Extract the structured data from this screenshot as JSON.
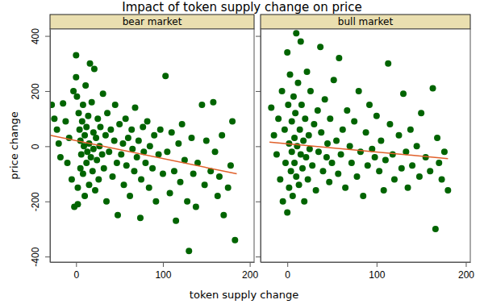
{
  "chart_data": [
    {
      "type": "scatter",
      "title": "Impact of token supply change on price",
      "subtitle": "bear market",
      "x_label": "token supply change",
      "y_label": "price change",
      "xlim": [
        -30,
        205
      ],
      "ylim": [
        -420,
        425
      ],
      "xticks": [
        0,
        100,
        200
      ],
      "yticks": [
        -400,
        -200,
        0,
        200,
        400
      ],
      "series": [
        {
          "type": "scatter",
          "color": "#006400",
          "marker": "circle",
          "x": [
            -28,
            -25,
            -22,
            -20,
            -18,
            -15,
            -12,
            -10,
            -8,
            -5,
            -3,
            -2,
            0,
            0,
            1,
            2,
            2,
            3,
            4,
            5,
            5,
            6,
            7,
            8,
            8,
            9,
            10,
            10,
            11,
            12,
            12,
            13,
            14,
            15,
            15,
            16,
            17,
            18,
            19,
            20,
            20,
            21,
            22,
            23,
            24,
            25,
            26,
            27,
            28,
            30,
            31,
            32,
            34,
            35,
            36,
            38,
            40,
            42,
            44,
            45,
            47,
            48,
            50,
            52,
            54,
            55,
            57,
            58,
            60,
            62,
            64,
            65,
            67,
            68,
            70,
            72,
            74,
            75,
            77,
            78,
            80,
            82,
            84,
            85,
            88,
            90,
            92,
            95,
            97,
            100,
            103,
            105,
            108,
            110,
            113,
            115,
            118,
            120,
            122,
            125,
            128,
            130,
            133,
            135,
            138,
            140,
            145,
            148,
            150,
            155,
            158,
            160,
            163,
            165,
            168,
            170,
            175,
            178,
            180,
            183
          ],
          "values": [
            150,
            100,
            60,
            10,
            -40,
            155,
            90,
            -60,
            30,
            -120,
            200,
            -220,
            330,
            250,
            180,
            -210,
            -150,
            120,
            60,
            -80,
            20,
            -30,
            90,
            -100,
            150,
            0,
            -180,
            40,
            220,
            -60,
            70,
            -20,
            110,
            -140,
            10,
            300,
            -40,
            160,
            -90,
            50,
            -10,
            280,
            -160,
            30,
            -50,
            100,
            -120,
            0,
            70,
            -30,
            190,
            -80,
            40,
            -200,
            120,
            -20,
            60,
            -110,
            20,
            150,
            -60,
            -250,
            80,
            -30,
            10,
            -140,
            100,
            -70,
            30,
            -180,
            60,
            -10,
            -90,
            140,
            -40,
            20,
            -260,
            -120,
            70,
            -20,
            -60,
            90,
            -150,
            0,
            -80,
            40,
            -200,
            -30,
            60,
            -100,
            255,
            -20,
            -170,
            50,
            -90,
            -270,
            10,
            -130,
            80,
            -50,
            -200,
            -380,
            30,
            -100,
            -220,
            -60,
            150,
            -140,
            20,
            -90,
            160,
            -20,
            -180,
            -110,
            40,
            -250,
            -150,
            -70,
            90,
            -340
          ]
        },
        {
          "type": "line",
          "color": "#e0602a",
          "line_style": "solid",
          "x": [
            -30,
            185
          ],
          "values": [
            40,
            -100
          ]
        }
      ]
    },
    {
      "type": "scatter",
      "subtitle": "bull market",
      "xlim": [
        -30,
        205
      ],
      "ylim": [
        -420,
        425
      ],
      "xticks": [
        0,
        100,
        200
      ],
      "yticks": [
        -400,
        -200,
        0,
        200,
        400
      ],
      "tick_labels": "x",
      "series": [
        {
          "type": "scatter",
          "color": "#006400",
          "marker": "circle",
          "x": [
            -18,
            -15,
            -12,
            -10,
            -8,
            -6,
            -5,
            -3,
            -2,
            0,
            0,
            1,
            2,
            2,
            3,
            4,
            5,
            5,
            6,
            7,
            8,
            8,
            9,
            10,
            10,
            11,
            12,
            13,
            14,
            15,
            15,
            16,
            17,
            18,
            19,
            20,
            21,
            22,
            23,
            24,
            25,
            26,
            28,
            30,
            32,
            34,
            35,
            37,
            38,
            40,
            42,
            44,
            45,
            47,
            48,
            50,
            52,
            55,
            57,
            58,
            60,
            62,
            65,
            67,
            70,
            72,
            75,
            78,
            80,
            82,
            85,
            88,
            90,
            92,
            95,
            98,
            100,
            103,
            105,
            108,
            110,
            113,
            115,
            118,
            120,
            125,
            128,
            130,
            133,
            135,
            138,
            140,
            145,
            148,
            150,
            155,
            160,
            163,
            166,
            168,
            170,
            173,
            176,
            180
          ],
          "values": [
            140,
            40,
            -30,
            100,
            -120,
            200,
            -200,
            60,
            -60,
            340,
            -240,
            150,
            10,
            -150,
            260,
            -90,
            90,
            -20,
            -180,
            180,
            30,
            -60,
            120,
            -110,
            410,
            0,
            230,
            -140,
            60,
            -30,
            380,
            150,
            -80,
            20,
            -200,
            100,
            -40,
            270,
            -120,
            40,
            -10,
            200,
            -70,
            80,
            -160,
            130,
            -20,
            360,
            50,
            -90,
            170,
            -40,
            10,
            -130,
            100,
            -60,
            240,
            20,
            -100,
            320,
            -30,
            60,
            -150,
            130,
            0,
            -60,
            90,
            -110,
            200,
            -20,
            -180,
            50,
            -70,
            150,
            -10,
            -40,
            110,
            -90,
            20,
            -160,
            -50,
            300,
            80,
            -30,
            -120,
            40,
            -80,
            190,
            -20,
            -150,
            60,
            -70,
            0,
            -110,
            120,
            -40,
            -90,
            210,
            -300,
            30,
            -60,
            -120,
            -20,
            -160
          ]
        },
        {
          "type": "line",
          "color": "#e0602a",
          "line_style": "solid",
          "x": [
            -20,
            180
          ],
          "values": [
            15,
            -45
          ]
        }
      ]
    }
  ]
}
